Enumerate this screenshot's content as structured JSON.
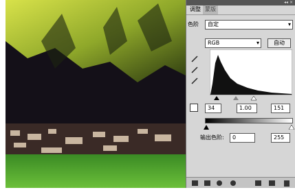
{
  "tabs": [
    "调整",
    "蒙版"
  ],
  "levels_label": "色阶",
  "preset": "自定",
  "channel": "RGB",
  "auto_button": "自动",
  "input_levels": [
    "34",
    "1.00",
    "151"
  ],
  "output_label": "输出色阶:",
  "output_levels": [
    "0",
    "255"
  ]
}
